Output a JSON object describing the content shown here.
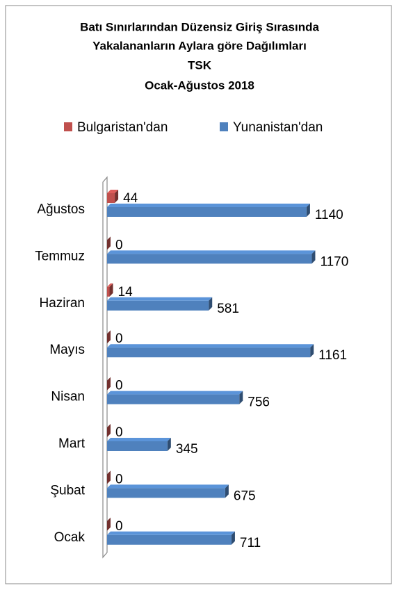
{
  "chart_data": {
    "type": "bar3d-horizontal",
    "title": [
      "Batı Sınırlarından Düzensiz Giriş Sırasında",
      "Yakalananların Aylara göre Dağılımları",
      "TSK",
      "Ocak-Ağustos 2018"
    ],
    "categories": [
      "Ocak",
      "Şubat",
      "Mart",
      "Nisan",
      "Mayıs",
      "Haziran",
      "Temmuz",
      "Ağustos"
    ],
    "series": [
      {
        "name": "Bulgaristan'dan",
        "color": "#c0504d",
        "values": [
          0,
          0,
          0,
          0,
          0,
          14,
          0,
          44
        ]
      },
      {
        "name": "Yunanistan'dan",
        "color": "#4f81bd",
        "values": [
          711,
          675,
          345,
          756,
          1161,
          581,
          1170,
          1140
        ]
      }
    ],
    "xlim": [
      0,
      1200
    ],
    "legend": "top"
  }
}
